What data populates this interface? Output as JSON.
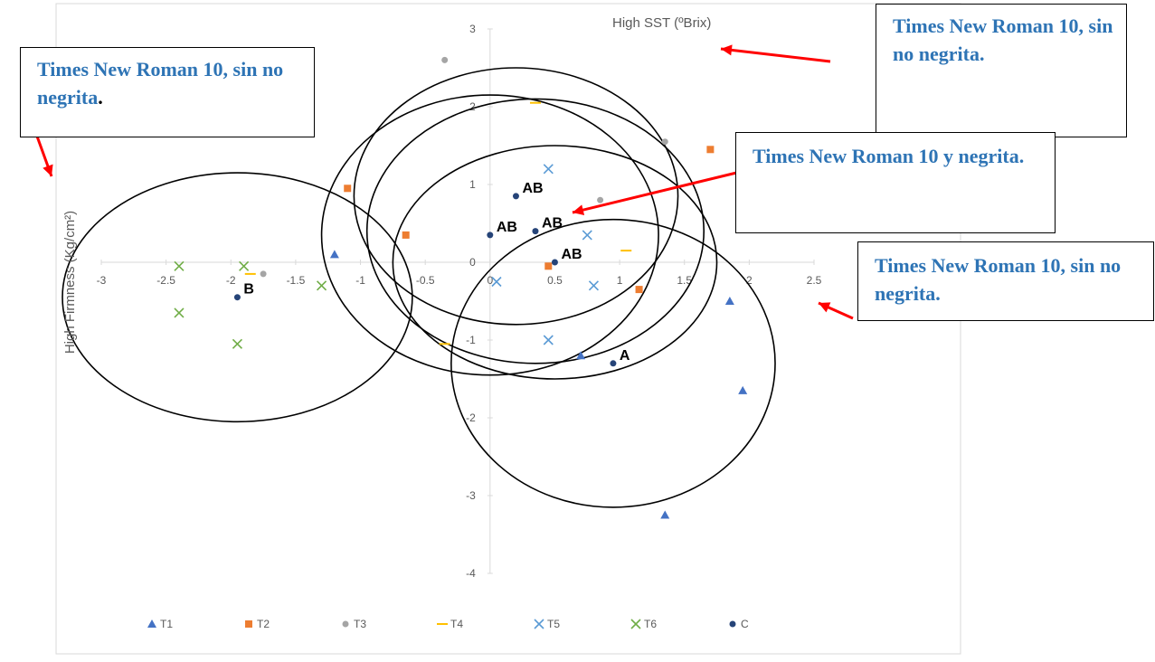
{
  "chart_data": {
    "type": "scatter",
    "title": "",
    "xlabel": "High SST (ºBrix)",
    "ylabel": "High Firmness (Kg/cm²)",
    "xlim": [
      -3,
      2.5
    ],
    "ylim": [
      -4,
      3
    ],
    "x_ticks": [
      "-3",
      "-2.5",
      "-2",
      "-1.5",
      "-1",
      "-0.5",
      "0",
      "0.5",
      "1",
      "1.5",
      "2",
      "2.5"
    ],
    "y_ticks": [
      "3",
      "2",
      "1",
      "0",
      "-1",
      "-2",
      "-3",
      "-4"
    ],
    "grid": false,
    "legend_position": "bottom",
    "series": [
      {
        "name": "T1",
        "marker": "triangle",
        "color": "#4472c4",
        "points": [
          [
            -1.2,
            0.1
          ],
          [
            0.7,
            -1.2
          ],
          [
            1.85,
            -0.5
          ],
          [
            1.95,
            -1.65
          ],
          [
            1.35,
            -3.25
          ]
        ]
      },
      {
        "name": "T2",
        "marker": "square",
        "color": "#ed7d31",
        "points": [
          [
            -1.1,
            0.95
          ],
          [
            -0.65,
            0.35
          ],
          [
            0.45,
            -0.05
          ],
          [
            1.15,
            -0.35
          ],
          [
            1.7,
            1.45
          ]
        ]
      },
      {
        "name": "T3",
        "marker": "circle",
        "color": "#a5a5a5",
        "points": [
          [
            -1.75,
            -0.15
          ],
          [
            0.85,
            0.8
          ],
          [
            1.35,
            1.55
          ],
          [
            -0.35,
            2.6
          ]
        ]
      },
      {
        "name": "T4",
        "marker": "dash",
        "color": "#ffc000",
        "points": [
          [
            -1.85,
            -0.15
          ],
          [
            0.35,
            2.05
          ],
          [
            1.05,
            0.15
          ],
          [
            -0.35,
            -1.05
          ]
        ]
      },
      {
        "name": "T5",
        "marker": "x",
        "color": "#5b9bd5",
        "points": [
          [
            0.45,
            1.2
          ],
          [
            0.05,
            -0.25
          ],
          [
            0.75,
            0.35
          ],
          [
            0.8,
            -0.3
          ],
          [
            0.45,
            -1.0
          ]
        ]
      },
      {
        "name": "T6",
        "marker": "x",
        "color": "#70ad47",
        "points": [
          [
            -2.4,
            -0.05
          ],
          [
            -1.9,
            -0.05
          ],
          [
            -2.4,
            -0.65
          ],
          [
            -1.95,
            -1.05
          ],
          [
            -1.3,
            -0.3
          ]
        ]
      },
      {
        "name": "C",
        "marker": "circle",
        "color": "#264478",
        "points": [
          [
            -1.95,
            -0.45
          ],
          [
            0.2,
            0.85
          ],
          [
            0.0,
            0.35
          ],
          [
            0.35,
            0.4
          ],
          [
            0.5,
            0.0
          ],
          [
            0.95,
            -1.3
          ]
        ]
      }
    ],
    "point_labels": [
      {
        "text": "B",
        "x": -1.95,
        "y": -0.45
      },
      {
        "text": "AB",
        "x": 0.2,
        "y": 0.85
      },
      {
        "text": "AB",
        "x": 0.0,
        "y": 0.35
      },
      {
        "text": "AB",
        "x": 0.35,
        "y": 0.4
      },
      {
        "text": "AB",
        "x": 0.5,
        "y": 0.0
      },
      {
        "text": "A",
        "x": 0.95,
        "y": -1.3
      }
    ],
    "ellipses": [
      {
        "cx": -1.95,
        "cy": -0.45,
        "rx": 1.35,
        "ry": 1.6
      },
      {
        "cx": 0.2,
        "cy": 0.85,
        "rx": 1.25,
        "ry": 1.65
      },
      {
        "cx": 0.0,
        "cy": 0.35,
        "rx": 1.3,
        "ry": 1.8
      },
      {
        "cx": 0.35,
        "cy": 0.4,
        "rx": 1.3,
        "ry": 1.7
      },
      {
        "cx": 0.5,
        "cy": 0.0,
        "rx": 1.25,
        "ry": 1.5
      },
      {
        "cx": 0.95,
        "cy": -1.3,
        "rx": 1.25,
        "ry": 1.85
      }
    ]
  },
  "annotations": {
    "box_left": {
      "text": "Times New Roman 10, sin no negrita",
      "tail": "."
    },
    "box_top_right": "Times New Roman 10, sin no negrita.",
    "box_mid_right": "Times New Roman 10 y negrita.",
    "box_bottom_right": "Times New Roman 10, sin no negrita."
  },
  "colors": {
    "arrow": "#ff0000",
    "annotation_text": "#2e74b5",
    "ellipse": "#000000",
    "axis": "#d9d9d9"
  }
}
